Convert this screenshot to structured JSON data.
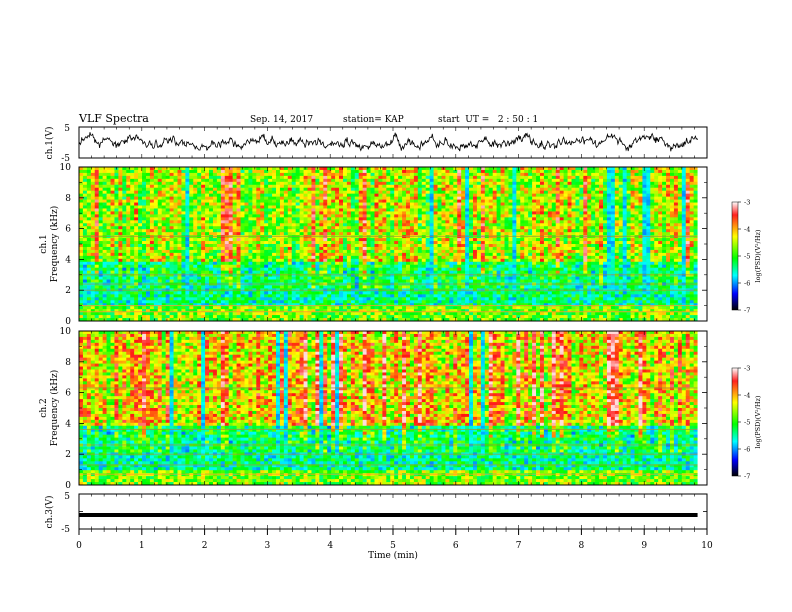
{
  "header": {
    "title": "VLF Spectra",
    "date": "Sep. 14, 2017",
    "station": "station= KAP",
    "start_ut": "start  UT =   2 : 50 : 1"
  },
  "chart_data": [
    {
      "type": "line",
      "panel": "ch.1 waveform",
      "ylabel": "ch.1(V)",
      "ylim": [
        -5,
        5
      ],
      "yticks": [
        "5",
        "-5"
      ],
      "xlim": [
        0,
        9.85
      ],
      "pattern": "noisy signal fluctuating roughly between -3 and 3 V across the whole interval",
      "color": "#000000"
    },
    {
      "type": "heatmap",
      "panel": "ch.1 spectrogram",
      "ylabel": "ch.1\nFrequency (kHz)",
      "ylim": [
        0,
        10
      ],
      "yticks": [
        "0",
        "2",
        "4",
        "6",
        "8",
        "10"
      ],
      "xlim": [
        0,
        9.85
      ],
      "horizontal_lines_khz": [
        0.6,
        1.0,
        2.0,
        2.4,
        3.0,
        5.5
      ],
      "colorbar": {
        "label": "log(PSD)(V²/Hz)",
        "range": [
          -7,
          -3
        ],
        "ticks": [
          "-3",
          "-4",
          "-5",
          "-6",
          "-7"
        ]
      }
    },
    {
      "type": "heatmap",
      "panel": "ch.2 spectrogram",
      "ylabel": "ch.2\nFrequency (kHz)",
      "ylim": [
        0,
        10
      ],
      "yticks": [
        "0",
        "2",
        "4",
        "6",
        "8",
        "10"
      ],
      "xlim": [
        0,
        9.85
      ],
      "horizontal_lines_khz": [
        0.7,
        1.3,
        2.0,
        2.6,
        3.6,
        6.3
      ],
      "colorbar": {
        "label": "log(PSD)(V²/Hz)",
        "range": [
          -7,
          -3
        ],
        "ticks": [
          "-3",
          "-4",
          "-5",
          "-6",
          "-7"
        ]
      }
    },
    {
      "type": "line",
      "panel": "ch.3 waveform",
      "ylabel": "ch.3(V)",
      "ylim": [
        -5,
        5
      ],
      "yticks": [
        "5",
        "-5"
      ],
      "xlim": [
        0,
        9.85
      ],
      "pattern": "flat thick line near -1 V",
      "level": -1,
      "color": "#000000"
    }
  ],
  "xaxis": {
    "label": "Time (min)",
    "range": [
      0,
      10
    ],
    "ticks": [
      "0",
      "1",
      "2",
      "3",
      "4",
      "5",
      "6",
      "7",
      "8",
      "9",
      "10"
    ]
  },
  "colormap": [
    "#ffffff",
    "#ff0000",
    "#ffff00",
    "#00ff00",
    "#00ffff",
    "#0000ff",
    "#000000"
  ]
}
